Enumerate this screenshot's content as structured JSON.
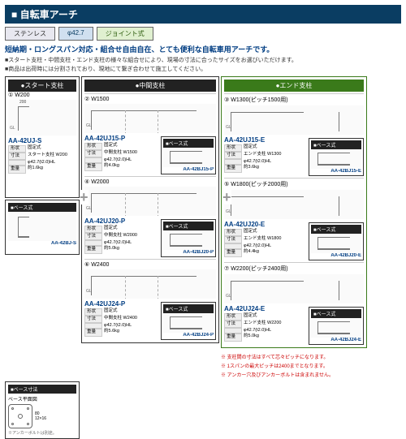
{
  "title": "■ 自転車アーチ",
  "tags": {
    "a": "ステンレス",
    "b": "φ42.7",
    "c": "ジョイント式"
  },
  "promo": "短納期・ロングスパン対応・組合せ自由自在、とても便利な自転車用アーチです。",
  "bullets": [
    "■スタート支柱・中間支柱・エンド支柱の様々な組合せにより、現場の寸法に合ったサイズをお選びいただけます。",
    "■商品は出荷時には分割されており、現地にて繋ぎ合わせて施工してください。"
  ],
  "headers": {
    "start": "●スタート支柱",
    "mid": "●中間支柱",
    "end": "●エンド支柱"
  },
  "start": {
    "head": "① W200",
    "model": "AA-42UJ-S",
    "spec": {
      "shape": "固定式",
      "body": "スタート支柱 W200",
      "size": "φ42.7(t2.0)HL",
      "weight": "約1.6kg"
    },
    "base_hdr": "■ベース式",
    "base_model": "AA-42BJ-S"
  },
  "mid": [
    {
      "head": "② W1500",
      "model": "AA-42UJ15-P",
      "body": "中間支柱 W1500",
      "size": "φ42.7(t2.0)HL",
      "weight": "約4.0kg",
      "base": "AA-42BJ15-P"
    },
    {
      "head": "④ W2000",
      "model": "AA-42UJ20-P",
      "body": "中間支柱 W2000",
      "size": "φ42.7(t2.0)HL",
      "weight": "約5.0kg",
      "base": "AA-42BJ20-P"
    },
    {
      "head": "⑥ W2400",
      "model": "AA-42UJ24-P",
      "body": "中間支柱 W2400",
      "size": "φ42.7(t2.0)HL",
      "weight": "約5.6kg",
      "base": "AA-42BJ24-P"
    }
  ],
  "end": [
    {
      "head": "③ W1300(ピッチ1500用)",
      "model": "AA-42UJ15-E",
      "body": "エンド支柱 W1300",
      "size": "φ42.7(t2.0)HL",
      "weight": "約3.6kg",
      "base": "AA-42BJ15-E"
    },
    {
      "head": "⑤ W1800(ピッチ2000用)",
      "model": "AA-42UJ20-E",
      "body": "エンド支柱 W1800",
      "size": "φ42.7(t2.0)HL",
      "weight": "約4.4kg",
      "base": "AA-42BJ20-E"
    },
    {
      "head": "⑦ W2200(ピッチ2400用)",
      "model": "AA-42UJ24-E",
      "body": "エンド支柱 W2200",
      "size": "φ42.7(t2.0)HL",
      "weight": "約5.0kg",
      "base": "AA-42BJ24-E"
    }
  ],
  "base_dim": {
    "title": "■ベース寸法",
    "sub": "ベース平面図",
    "note": "※アンカーボルトは別途。",
    "d1": "80",
    "d2": "12×16"
  },
  "labels": {
    "shape": "形状",
    "fixed": "固定式",
    "size_lbl": "寸法",
    "weight_lbl": "重量",
    "base_hdr": "■ベース式"
  },
  "footnotes": [
    "※ 支柱間の寸法はすべて芯々ピッチになります。",
    "※ 1スパンの最大ピッチは2400までとなります。",
    "※ アンカー穴及びアンカーボルトは含まれません。"
  ]
}
